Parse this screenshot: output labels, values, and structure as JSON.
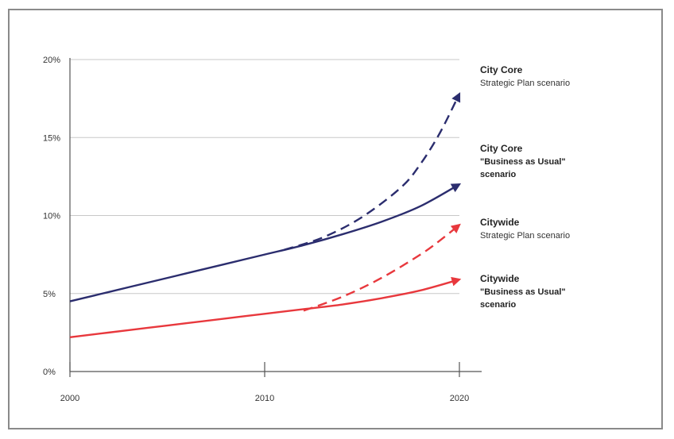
{
  "chart_data": {
    "type": "line",
    "title": "",
    "xlabel": "",
    "ylabel": "",
    "x_ticks": [
      "2000",
      "2010",
      "2020"
    ],
    "y_ticks": [
      "0%",
      "5%",
      "10%",
      "15%",
      "20%"
    ],
    "xlim": [
      2000,
      2020
    ],
    "ylim": [
      0,
      20
    ],
    "grid": "horizontal",
    "series": [
      {
        "key": "core_bau",
        "line_style": "solid",
        "color": "#2b2d6e",
        "x": [
          2000,
          2002,
          2004,
          2006,
          2008,
          2010,
          2012,
          2014,
          2016,
          2018,
          2020
        ],
        "y": [
          4.5,
          5.1,
          5.7,
          6.3,
          6.9,
          7.5,
          8.1,
          8.8,
          9.6,
          10.6,
          12.0
        ]
      },
      {
        "key": "core_strategic",
        "line_style": "dashed",
        "color": "#2b2d6e",
        "x": [
          2011,
          2013,
          2015,
          2017,
          2018,
          2019,
          2020
        ],
        "y": [
          7.8,
          8.6,
          9.9,
          11.8,
          13.3,
          15.3,
          17.8
        ]
      },
      {
        "key": "city_bau",
        "line_style": "solid",
        "color": "#e8383d",
        "x": [
          2000,
          2002,
          2004,
          2006,
          2008,
          2010,
          2012,
          2014,
          2016,
          2018,
          2020
        ],
        "y": [
          2.2,
          2.5,
          2.8,
          3.1,
          3.4,
          3.7,
          4.0,
          4.3,
          4.7,
          5.2,
          5.9
        ]
      },
      {
        "key": "city_strategic",
        "line_style": "dashed",
        "color": "#e8383d",
        "x": [
          2012,
          2014,
          2016,
          2018,
          2019,
          2020
        ],
        "y": [
          3.9,
          4.8,
          6.0,
          7.5,
          8.4,
          9.4
        ]
      }
    ],
    "annotations": [
      {
        "key": "core_strategic",
        "title": "City Core",
        "lines": [
          "Strategic Plan scenario"
        ],
        "bold_lines": false
      },
      {
        "key": "core_bau",
        "title": "City Core",
        "lines": [
          "\"Business as Usual\"",
          "scenario"
        ],
        "bold_lines": true
      },
      {
        "key": "city_strategic",
        "title": "Citywide",
        "lines": [
          "Strategic Plan scenario"
        ],
        "bold_lines": false
      },
      {
        "key": "city_bau",
        "title": "Citywide",
        "lines": [
          "\"Business as Usual\"",
          "scenario"
        ],
        "bold_lines": true
      }
    ]
  }
}
